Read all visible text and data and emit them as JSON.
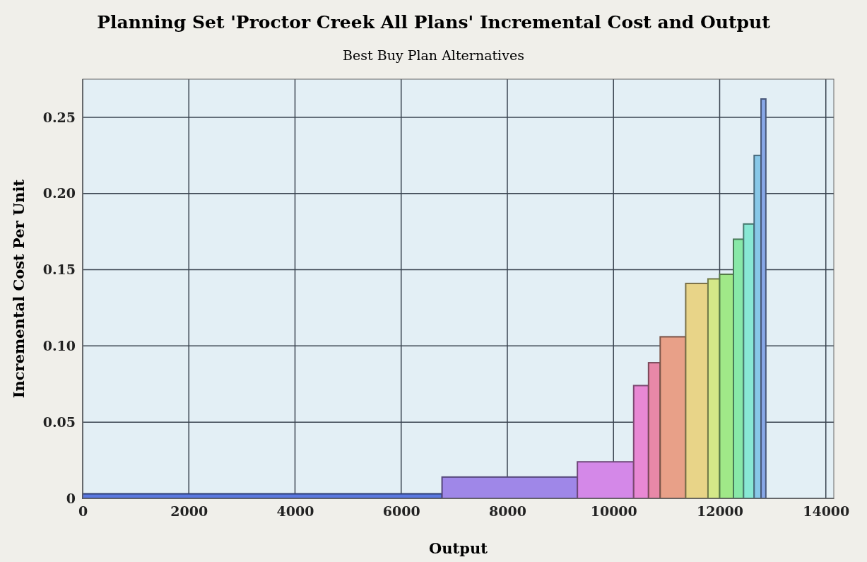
{
  "chart_data": {
    "type": "histogram",
    "title": "Planning Set 'Proctor Creek All Plans' Incremental Cost and Output",
    "subtitle": "Best Buy Plan Alternatives",
    "xlabel": "Output",
    "ylabel": "Incremental Cost Per Unit",
    "bins": [
      0,
      6770,
      9320,
      10380,
      10660,
      10880,
      11360,
      11780,
      12000,
      12260,
      12450,
      12650,
      12780,
      12870
    ],
    "values": [
      0.003,
      0.014,
      0.024,
      0.074,
      0.089,
      0.106,
      0.141,
      0.144,
      0.147,
      0.17,
      0.18,
      0.225,
      0.262
    ],
    "colors": [
      "#5a78e0",
      "#9f87e8",
      "#d488e8",
      "#e888d4",
      "#e888a8",
      "#e8a088",
      "#e8d488",
      "#d4e888",
      "#a0e888",
      "#88e8a8",
      "#88e8d4",
      "#88c8e8",
      "#88a8e8"
    ],
    "xlim": [
      0,
      14150
    ],
    "xticks": [
      0,
      2000,
      4000,
      6000,
      8000,
      10000,
      12000,
      14000
    ],
    "ylim": [
      0,
      0.275
    ],
    "yticks": [
      0,
      {
        "value": 0.05,
        "label": "0.05"
      },
      {
        "value": 0.1,
        "label": "0.10"
      },
      {
        "value": 0.15,
        "label": "0.15"
      },
      {
        "value": 0.2,
        "label": "0.20"
      },
      {
        "value": 0.25,
        "label": "0.25"
      }
    ],
    "grid": true
  }
}
